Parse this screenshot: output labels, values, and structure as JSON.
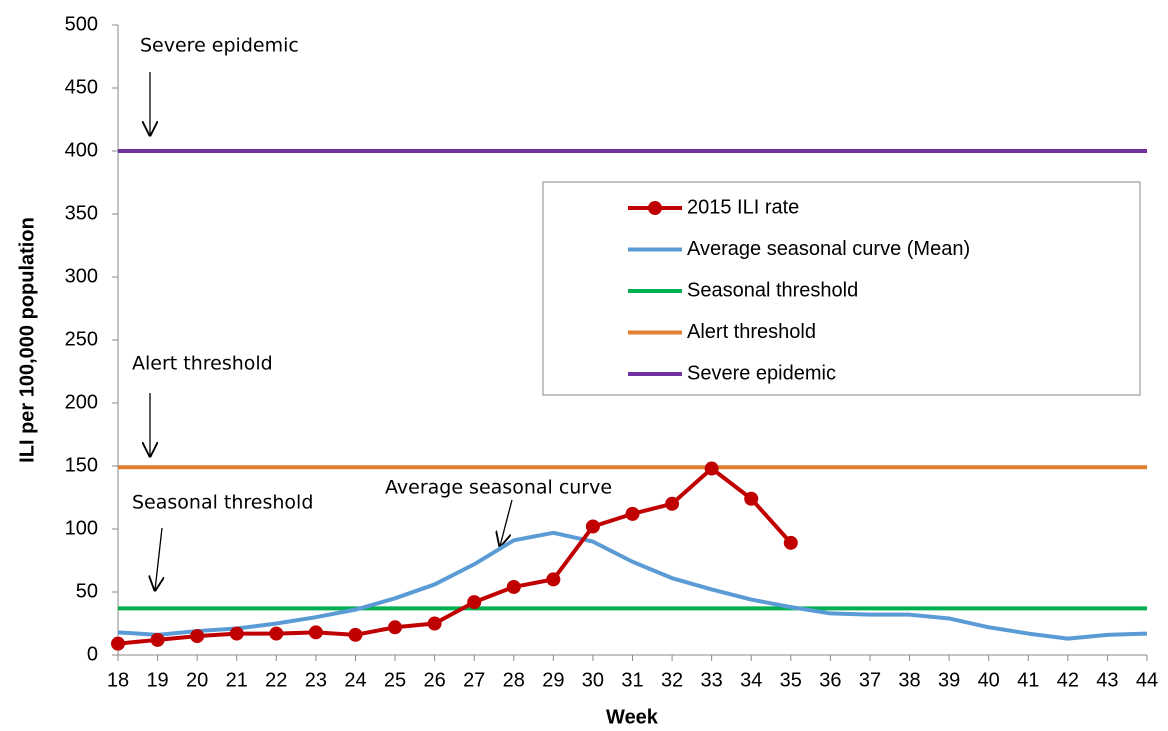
{
  "chart_data": {
    "type": "line",
    "x_label": "Week",
    "y_label": "ILI per 100,000 population",
    "categories": [
      "18",
      "19",
      "20",
      "21",
      "22",
      "23",
      "24",
      "25",
      "26",
      "27",
      "28",
      "29",
      "30",
      "31",
      "32",
      "33",
      "34",
      "35",
      "36",
      "37",
      "38",
      "39",
      "40",
      "41",
      "42",
      "43",
      "44"
    ],
    "ylim": [
      0,
      500
    ],
    "yticks": [
      0,
      50,
      100,
      150,
      200,
      250,
      300,
      350,
      400,
      450,
      500
    ],
    "grid": false,
    "legend": "right",
    "series": [
      {
        "name": "2015 ILI rate",
        "color": "#c00000",
        "markers": true,
        "values": [
          9,
          12,
          15,
          17,
          17,
          18,
          16,
          22,
          25,
          42,
          54,
          60,
          102,
          112,
          120,
          148,
          124,
          89,
          null,
          null,
          null,
          null,
          null,
          null,
          null,
          null,
          null
        ]
      },
      {
        "name": "Average seasonal curve (Mean)",
        "color": "#5b9bd5",
        "markers": false,
        "values": [
          18,
          16,
          19,
          21,
          25,
          30,
          36,
          45,
          56,
          72,
          91,
          97,
          90,
          74,
          61,
          52,
          44,
          38,
          33,
          32,
          32,
          29,
          22,
          17,
          13,
          16,
          17
        ]
      },
      {
        "name": "Seasonal threshold",
        "color": "#00b050",
        "markers": false,
        "values": [
          37,
          37,
          37,
          37,
          37,
          37,
          37,
          37,
          37,
          37,
          37,
          37,
          37,
          37,
          37,
          37,
          37,
          37,
          37,
          37,
          37,
          37,
          37,
          37,
          37,
          37,
          37
        ]
      },
      {
        "name": "Alert threshold",
        "color": "#e07f2f",
        "markers": false,
        "values": [
          149,
          149,
          149,
          149,
          149,
          149,
          149,
          149,
          149,
          149,
          149,
          149,
          149,
          149,
          149,
          149,
          149,
          149,
          149,
          149,
          149,
          149,
          149,
          149,
          149,
          149,
          149
        ]
      },
      {
        "name": "Severe epidemic",
        "color": "#7030a0",
        "markers": false,
        "values": [
          400,
          400,
          400,
          400,
          400,
          400,
          400,
          400,
          400,
          400,
          400,
          400,
          400,
          400,
          400,
          400,
          400,
          400,
          400,
          400,
          400,
          400,
          400,
          400,
          400,
          400,
          400
        ]
      }
    ],
    "annotations": [
      "Severe epidemic",
      "Alert threshold",
      "Seasonal threshold",
      "Average seasonal curve"
    ]
  }
}
